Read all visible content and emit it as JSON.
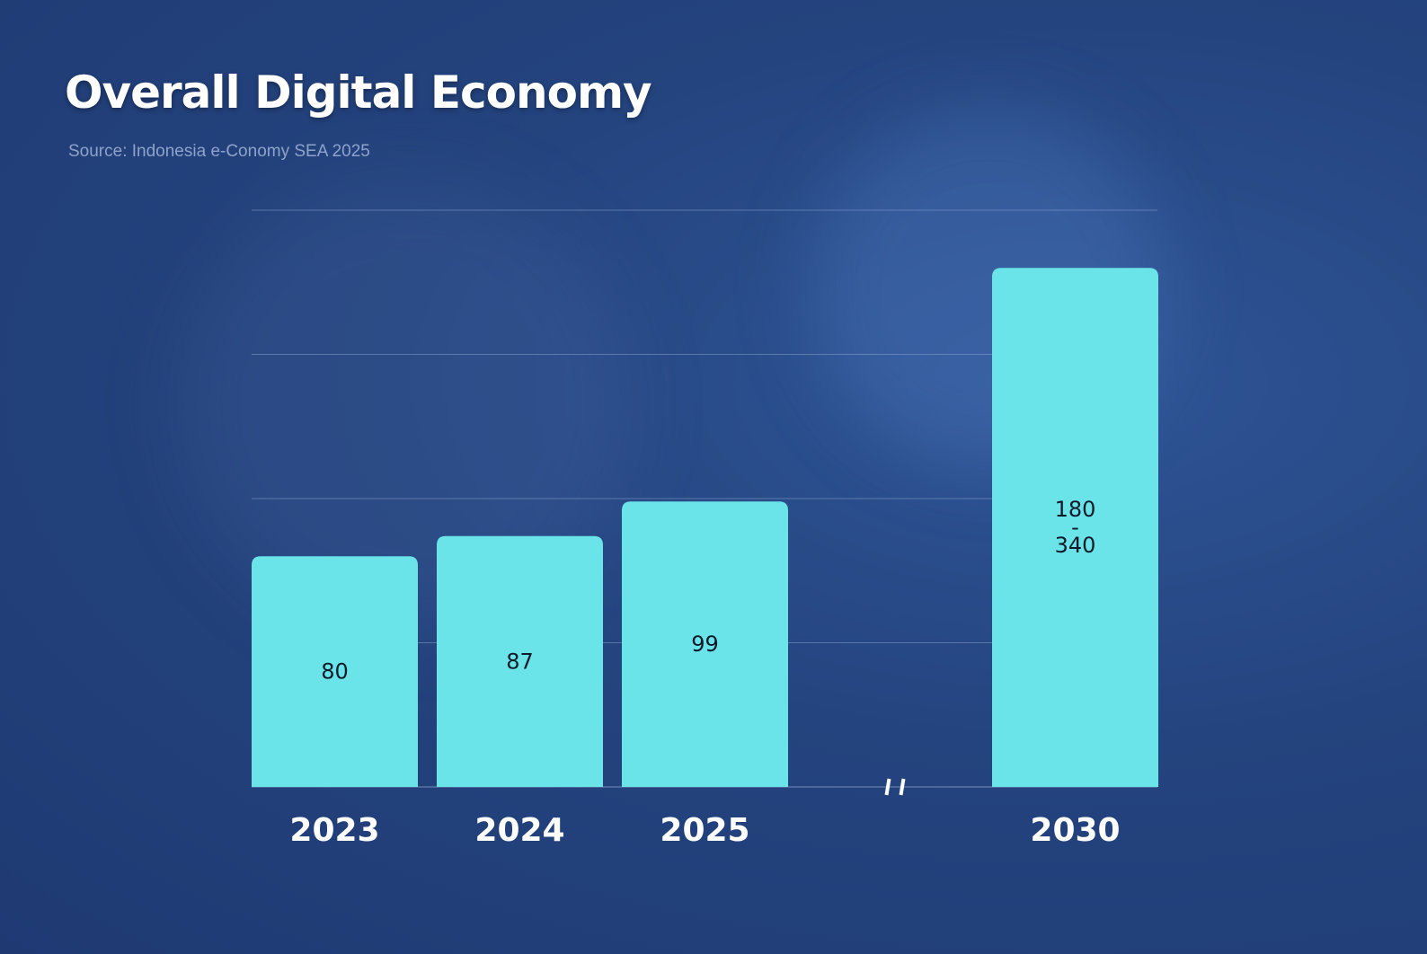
{
  "title": "Overall Digital Economy",
  "source": "Source: Indonesia e-Conomy SEA 2025",
  "chart_data": {
    "type": "bar",
    "title": "Overall Digital Economy",
    "categories": [
      "2023",
      "2024",
      "2025",
      "2030"
    ],
    "values": [
      80,
      87,
      99,
      180
    ],
    "value_range_2030": [
      180,
      340
    ],
    "data_labels": [
      [
        "80"
      ],
      [
        "87"
      ],
      [
        "99"
      ],
      [
        "180",
        "-",
        "340"
      ]
    ],
    "axis_break_between": [
      "2025",
      "2030"
    ],
    "ylim": [
      0,
      200
    ],
    "gridlines": [
      50,
      100,
      150,
      200
    ],
    "grid": true,
    "xlabel": "",
    "ylabel": "",
    "bar_color": "#6ae4e8"
  }
}
